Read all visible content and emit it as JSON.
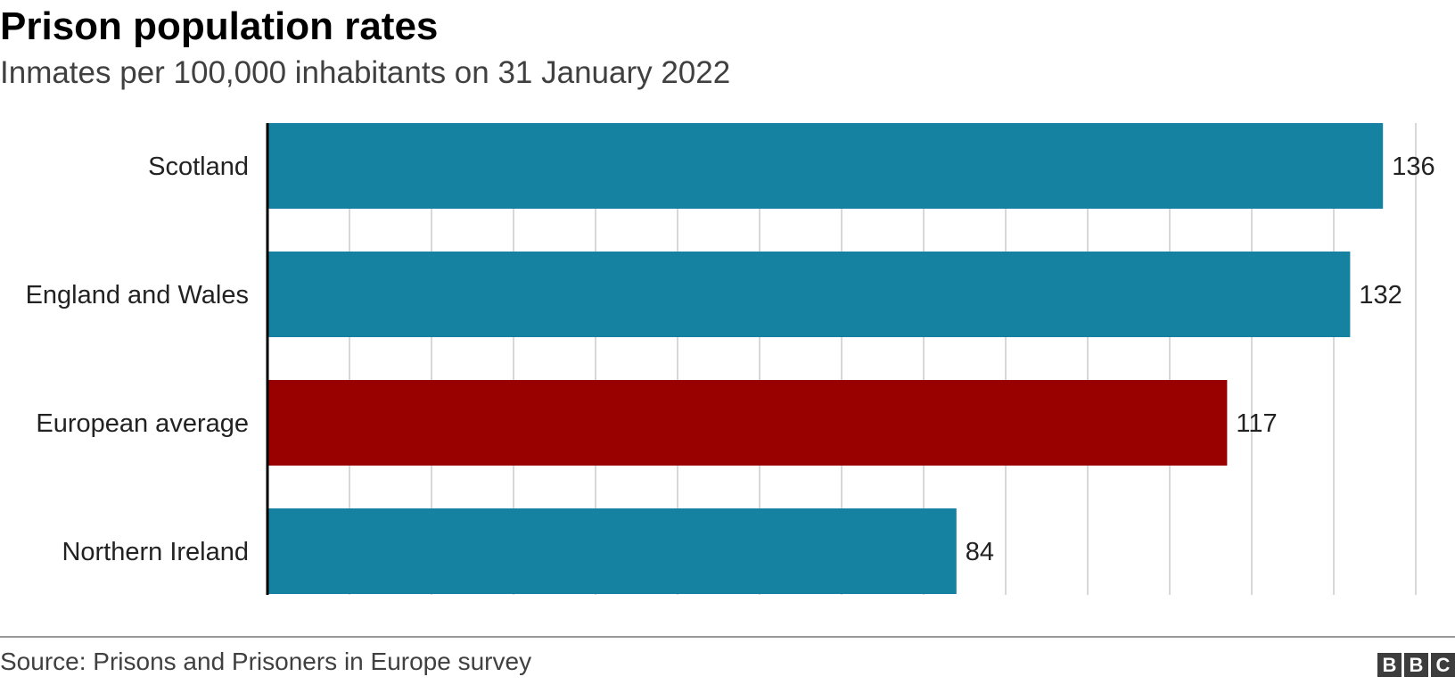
{
  "chart_data": {
    "type": "bar",
    "orientation": "horizontal",
    "title": "Prison population rates",
    "subtitle": "Inmates per 100,000 inhabitants on 31 January 2022",
    "categories": [
      "Scotland",
      "England and Wales",
      "European average",
      "Northern Ireland"
    ],
    "values": [
      136,
      132,
      117,
      84
    ],
    "value_labels": [
      "136",
      "132",
      "117",
      "84"
    ],
    "bar_colors": [
      "#1682a2",
      "#1682a2",
      "#990000",
      "#1682a2"
    ],
    "xlim": [
      0,
      140
    ],
    "grid_step": 10,
    "grid": true,
    "xlabel": "",
    "ylabel": ""
  },
  "footer": {
    "source": "Source: Prisons and Prisoners in Europe survey",
    "logo_letters": [
      "B",
      "B",
      "C"
    ]
  }
}
